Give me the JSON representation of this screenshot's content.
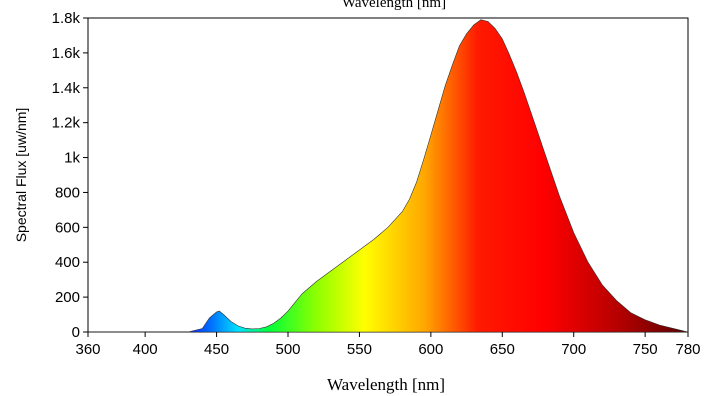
{
  "chart_data": {
    "type": "area",
    "title": "Wavelength [nm]",
    "xlabel": "Wavelength [nm]",
    "ylabel": "Spectral Flux [uw/nm]",
    "xlim": [
      360,
      780
    ],
    "ylim": [
      0,
      1800
    ],
    "x_ticks": [
      "360",
      "400",
      "450",
      "500",
      "550",
      "600",
      "650",
      "700",
      "750",
      "780"
    ],
    "x_tick_values": [
      360,
      400,
      450,
      500,
      550,
      600,
      650,
      700,
      750,
      780
    ],
    "y_ticks": [
      "0",
      "200",
      "400",
      "600",
      "800",
      "1k",
      "1.2k",
      "1.4k",
      "1.6k",
      "1.8k"
    ],
    "y_tick_values": [
      0,
      200,
      400,
      600,
      800,
      1000,
      1200,
      1400,
      1600,
      1800
    ],
    "series": [
      {
        "x": [
          360,
          400,
          430,
          440,
          445,
          450,
          452,
          455,
          460,
          465,
          470,
          475,
          480,
          485,
          490,
          495,
          500,
          505,
          510,
          520,
          530,
          540,
          550,
          560,
          570,
          580,
          585,
          590,
          595,
          600,
          605,
          610,
          615,
          620,
          625,
          630,
          635,
          640,
          645,
          650,
          655,
          660,
          665,
          670,
          675,
          680,
          690,
          700,
          710,
          720,
          730,
          740,
          750,
          760,
          770,
          775,
          780
        ],
        "values": [
          0,
          0,
          0,
          20,
          80,
          115,
          120,
          100,
          60,
          35,
          22,
          18,
          20,
          30,
          50,
          80,
          120,
          170,
          220,
          290,
          350,
          410,
          470,
          530,
          600,
          690,
          760,
          860,
          990,
          1130,
          1270,
          1410,
          1530,
          1640,
          1710,
          1760,
          1790,
          1780,
          1740,
          1680,
          1590,
          1490,
          1380,
          1260,
          1140,
          1020,
          780,
          570,
          400,
          270,
          180,
          110,
          70,
          40,
          20,
          10,
          0
        ]
      }
    ]
  }
}
